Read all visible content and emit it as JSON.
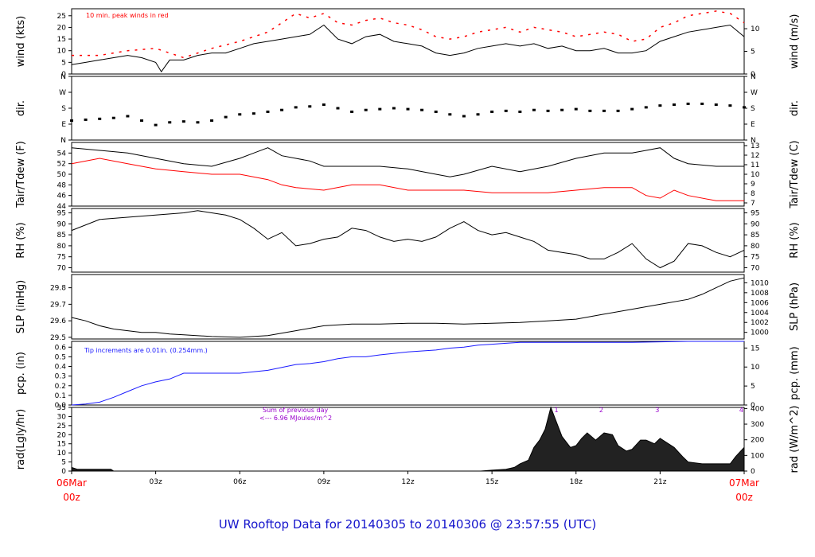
{
  "title": "UW Rooftop Data for 20140305  to  20140306 @ 23:57:55  (UTC)",
  "x_axis": {
    "start_day": "06Mar",
    "start_hour": "00z",
    "end_day": "07Mar",
    "end_hour": "00z",
    "hour_labels": [
      "03z",
      "06z",
      "09z",
      "12z",
      "15z",
      "18z",
      "21z"
    ],
    "hour_values": [
      3,
      6,
      9,
      12,
      15,
      18,
      21
    ],
    "range": [
      0,
      24
    ]
  },
  "colors": {
    "line": "#000000",
    "red": "#ff0000",
    "blue": "#1a1aff",
    "purple": "#9900cc",
    "title": "#1515cc"
  },
  "chart_data": [
    {
      "type": "line",
      "id": "wind",
      "ylabel_left": "wind (kts)",
      "ylabel_right": "wind (m/s)",
      "ylim": [
        0,
        28
      ],
      "left_ticks": [
        "0",
        "5",
        "10",
        "15",
        "20",
        "25"
      ],
      "left_tick_values": [
        0,
        5,
        10,
        15,
        20,
        25
      ],
      "right_ticks": [
        "0",
        "5",
        "10"
      ],
      "right_tick_values": [
        0,
        9.72,
        19.44
      ],
      "annotation": "10 min. peak winds in red",
      "series": [
        {
          "name": "wind speed",
          "color": "#000000",
          "x": [
            0,
            0.5,
            1,
            1.5,
            2,
            2.5,
            3,
            3.2,
            3.5,
            4,
            4.5,
            5,
            5.5,
            6,
            6.5,
            7,
            7.5,
            8,
            8.5,
            9,
            9.5,
            10,
            10.5,
            11,
            11.5,
            12,
            12.5,
            13,
            13.5,
            14,
            14.5,
            15,
            15.5,
            16,
            16.5,
            17,
            17.5,
            18,
            18.5,
            19,
            19.5,
            20,
            20.5,
            21,
            21.5,
            22,
            22.5,
            23,
            23.5,
            24
          ],
          "y": [
            4,
            5,
            6,
            7,
            8,
            7,
            5,
            1,
            6,
            6,
            8,
            9,
            9,
            11,
            13,
            14,
            15,
            16,
            17,
            21,
            15,
            13,
            16,
            17,
            14,
            13,
            12,
            9,
            8,
            9,
            11,
            12,
            13,
            12,
            13,
            11,
            12,
            10,
            10,
            11,
            9,
            9,
            10,
            14,
            16,
            18,
            19,
            20,
            21,
            16
          ]
        },
        {
          "name": "10 min. peak winds",
          "color": "#ff0000",
          "style": "dash",
          "x": [
            0,
            1,
            2,
            3,
            4,
            5,
            6,
            7,
            7.5,
            8,
            8.5,
            9,
            9.5,
            10,
            10.5,
            11,
            11.5,
            12,
            12.5,
            13,
            13.5,
            14,
            14.5,
            15,
            15.5,
            16,
            16.5,
            17,
            17.5,
            18,
            18.5,
            19,
            19.5,
            20,
            20.5,
            21,
            21.5,
            22,
            22.5,
            23,
            23.5,
            24
          ],
          "y": [
            8,
            8,
            10,
            11,
            7,
            11,
            14,
            18,
            22,
            26,
            24,
            26,
            22,
            21,
            23,
            24,
            22,
            21,
            19,
            16,
            15,
            16,
            18,
            19,
            20,
            18,
            20,
            19,
            18,
            16,
            17,
            18,
            17,
            14,
            15,
            20,
            22,
            25,
            26,
            27,
            26,
            22
          ]
        }
      ]
    },
    {
      "type": "scatter",
      "id": "dir",
      "ylabel_left": "dir.",
      "ylabel_right": "dir.",
      "ylim": [
        0,
        360
      ],
      "left_ticks": [
        "N",
        "E",
        "S",
        "W",
        "N"
      ],
      "left_tick_values": [
        0,
        90,
        180,
        270,
        360
      ],
      "right_ticks": [
        "N",
        "E",
        "S",
        "W",
        "N"
      ],
      "right_tick_values": [
        0,
        90,
        180,
        270,
        360
      ],
      "series": [
        {
          "name": "wind direction",
          "color": "#000000",
          "x": [
            0,
            0.5,
            1,
            1.5,
            2,
            2.5,
            3,
            3.5,
            4,
            4.5,
            5,
            5.5,
            6,
            6.5,
            7,
            7.5,
            8,
            8.5,
            9,
            9.5,
            10,
            10.5,
            11,
            11.5,
            12,
            12.5,
            13,
            13.5,
            14,
            14.5,
            15,
            15.5,
            16,
            16.5,
            17,
            17.5,
            18,
            18.5,
            19,
            19.5,
            20,
            20.5,
            21,
            21.5,
            22,
            22.5,
            23,
            23.5,
            24
          ],
          "y": [
            110,
            115,
            120,
            125,
            135,
            110,
            85,
            100,
            105,
            100,
            110,
            130,
            145,
            150,
            160,
            170,
            185,
            190,
            200,
            180,
            160,
            170,
            175,
            180,
            175,
            170,
            160,
            145,
            135,
            145,
            160,
            165,
            160,
            170,
            165,
            170,
            175,
            165,
            165,
            165,
            175,
            185,
            195,
            200,
            205,
            205,
            200,
            195,
            185
          ]
        }
      ]
    },
    {
      "type": "line",
      "id": "temp",
      "ylabel_left": "Tair/Tdew (F)",
      "ylabel_right": "Tair/Tdew (C)",
      "ylim": [
        44,
        56
      ],
      "left_ticks": [
        "44",
        "46",
        "48",
        "50",
        "52",
        "54"
      ],
      "left_tick_values": [
        44,
        46,
        48,
        50,
        52,
        54
      ],
      "right_ticks": [
        "7",
        "8",
        "9",
        "10",
        "11",
        "12",
        "13"
      ],
      "right_tick_values": [
        44.6,
        46.4,
        48.2,
        50.0,
        51.8,
        53.6,
        55.4
      ],
      "series": [
        {
          "name": "Tair",
          "color": "#000000",
          "x": [
            0,
            1,
            2,
            3,
            4,
            5,
            6,
            6.5,
            7,
            7.5,
            8,
            8.5,
            9,
            9.5,
            10,
            11,
            12,
            13,
            13.5,
            14,
            15,
            16,
            17,
            18,
            19,
            20,
            20.5,
            21,
            21.5,
            22,
            23,
            24
          ],
          "y": [
            55,
            54.5,
            54,
            53,
            52,
            51.5,
            53,
            54,
            55,
            53.5,
            53,
            52.5,
            51.5,
            51.5,
            51.5,
            51.5,
            51,
            50,
            49.5,
            50,
            51.5,
            50.5,
            51.5,
            53,
            54,
            54,
            54.5,
            55,
            53,
            52,
            51.5,
            51.5
          ]
        },
        {
          "name": "Tdew",
          "color": "#ff0000",
          "x": [
            0,
            1,
            2,
            3,
            4,
            5,
            6,
            7,
            7.5,
            8,
            9,
            10,
            11,
            12,
            13,
            14,
            15,
            16,
            17,
            18,
            19,
            20,
            20.5,
            21,
            21.5,
            22,
            23,
            24
          ],
          "y": [
            52,
            53,
            52,
            51,
            50.5,
            50,
            50,
            49,
            48,
            47.5,
            47,
            48,
            48,
            47,
            47,
            47,
            46.5,
            46.5,
            46.5,
            47,
            47.5,
            47.5,
            46,
            45.5,
            47,
            46,
            45,
            45
          ]
        }
      ]
    },
    {
      "type": "line",
      "id": "rh",
      "ylabel_left": "RH (%)",
      "ylabel_right": "RH (%)",
      "ylim": [
        68,
        97
      ],
      "left_ticks": [
        "70",
        "75",
        "80",
        "85",
        "90",
        "95"
      ],
      "left_tick_values": [
        70,
        75,
        80,
        85,
        90,
        95
      ],
      "right_ticks": [
        "70",
        "75",
        "80",
        "85",
        "90",
        "95"
      ],
      "right_tick_values": [
        70,
        75,
        80,
        85,
        90,
        95
      ],
      "series": [
        {
          "name": "RH",
          "color": "#000000",
          "x": [
            0,
            1,
            2,
            3,
            4,
            4.5,
            5,
            5.5,
            6,
            6.5,
            7,
            7.5,
            8,
            8.5,
            9,
            9.5,
            10,
            10.5,
            11,
            11.5,
            12,
            12.5,
            13,
            13.5,
            14,
            14.5,
            15,
            15.5,
            16,
            16.5,
            17,
            17.5,
            18,
            18.5,
            19,
            19.5,
            20,
            20.5,
            21,
            21.5,
            22,
            22.5,
            23,
            23.5,
            24
          ],
          "y": [
            87,
            92,
            93,
            94,
            95,
            96,
            95,
            94,
            92,
            88,
            83,
            86,
            80,
            81,
            83,
            84,
            88,
            87,
            84,
            82,
            83,
            82,
            84,
            88,
            91,
            87,
            85,
            86,
            84,
            82,
            78,
            77,
            76,
            74,
            74,
            77,
            81,
            74,
            70,
            73,
            81,
            80,
            77,
            75,
            78
          ]
        }
      ]
    },
    {
      "type": "line",
      "id": "slp",
      "ylabel_left": "SLP (inHg)",
      "ylabel_right": "SLP (hPa)",
      "ylim": [
        29.49,
        29.88
      ],
      "left_ticks": [
        "29.5",
        "29.6",
        "29.7",
        "29.8"
      ],
      "left_tick_values": [
        29.5,
        29.6,
        29.7,
        29.8
      ],
      "right_ticks": [
        "1000",
        "1002",
        "1004",
        "1006",
        "1008",
        "1010"
      ],
      "right_tick_values": [
        29.53,
        29.59,
        29.65,
        29.71,
        29.77,
        29.83
      ],
      "series": [
        {
          "name": "SLP",
          "color": "#000000",
          "x": [
            0,
            0.5,
            1,
            1.5,
            2,
            2.5,
            3,
            3.5,
            4,
            5,
            6,
            7,
            8,
            9,
            10,
            11,
            12,
            13,
            14,
            15,
            16,
            17,
            18,
            19,
            20,
            21,
            22,
            22.5,
            23,
            23.5,
            24
          ],
          "y": [
            29.62,
            29.6,
            29.57,
            29.55,
            29.54,
            29.53,
            29.53,
            29.52,
            29.515,
            29.505,
            29.5,
            29.51,
            29.54,
            29.57,
            29.58,
            29.58,
            29.585,
            29.585,
            29.58,
            29.585,
            29.59,
            29.6,
            29.61,
            29.64,
            29.67,
            29.7,
            29.73,
            29.76,
            29.8,
            29.84,
            29.86
          ]
        }
      ]
    },
    {
      "type": "area",
      "id": "pcp",
      "ylabel_left": "pcp. (in)",
      "ylabel_right": "pcp. (mm)",
      "ylim": [
        0,
        0.66
      ],
      "left_ticks": [
        "0.0",
        "0.1",
        "0.2",
        "0.3",
        "0.4",
        "0.5",
        "0.6"
      ],
      "left_tick_values": [
        0,
        0.1,
        0.2,
        0.3,
        0.4,
        0.5,
        0.6
      ],
      "right_ticks": [
        "0",
        "5",
        "10",
        "15"
      ],
      "right_tick_values": [
        0,
        0.197,
        0.394,
        0.591
      ],
      "annotation": "Tip increments are 0.01in. (0.254mm.)",
      "series": [
        {
          "name": "cumulative precipitation",
          "color": "#1a1aff",
          "x": [
            0,
            0.5,
            1,
            1.5,
            2,
            2.5,
            3,
            3.5,
            4,
            5,
            6,
            7,
            7.5,
            8,
            8.5,
            9,
            9.5,
            10,
            10.5,
            11,
            12,
            13,
            13.5,
            14,
            14.5,
            15,
            15.5,
            16,
            18,
            20,
            22,
            24
          ],
          "y": [
            0,
            0.01,
            0.03,
            0.08,
            0.14,
            0.2,
            0.24,
            0.27,
            0.33,
            0.33,
            0.33,
            0.36,
            0.39,
            0.42,
            0.43,
            0.45,
            0.48,
            0.5,
            0.5,
            0.52,
            0.55,
            0.57,
            0.59,
            0.6,
            0.62,
            0.63,
            0.64,
            0.65,
            0.65,
            0.65,
            0.66,
            0.66
          ]
        }
      ]
    },
    {
      "type": "area",
      "id": "rad",
      "ylabel_left": "rad(Lgly/hr)",
      "ylabel_right": "rad (W/m^2)",
      "ylim": [
        0,
        35
      ],
      "left_ticks": [
        "0",
        "5",
        "10",
        "15",
        "20",
        "25",
        "30",
        "35"
      ],
      "left_tick_values": [
        0,
        5,
        10,
        15,
        20,
        25,
        30,
        35
      ],
      "right_ticks": [
        "0",
        "100",
        "200",
        "300",
        "400"
      ],
      "right_tick_values": [
        0,
        8.6,
        17.2,
        25.8,
        34.4
      ],
      "annotation_line1": "Sum of previous day",
      "annotation_line2": "<--- 6.96 MJoules/m^2",
      "peak_labels": [
        "1",
        "2",
        "3",
        "4"
      ],
      "peak_label_times": [
        17.3,
        18.9,
        20.9,
        23.9
      ],
      "series": [
        {
          "name": "solar radiation",
          "color": "#000000",
          "x": [
            0,
            0.2,
            0.5,
            1,
            1.4,
            1.5,
            2,
            14.6,
            15,
            15.5,
            15.8,
            16,
            16.3,
            16.5,
            16.7,
            16.9,
            17.1,
            17.3,
            17.5,
            17.8,
            18,
            18.2,
            18.4,
            18.7,
            19,
            19.3,
            19.5,
            19.8,
            20,
            20.3,
            20.5,
            20.8,
            21,
            21.2,
            21.5,
            21.8,
            22,
            22.5,
            23,
            23.5,
            23.7,
            24
          ],
          "y": [
            2,
            1,
            1,
            1,
            1,
            0,
            0,
            0,
            0.5,
            1,
            2,
            4,
            6,
            13,
            17,
            23,
            35,
            27,
            19,
            13,
            14,
            18,
            21,
            17,
            21,
            20,
            14,
            11,
            12,
            17,
            17,
            15,
            18,
            16,
            13,
            8,
            5,
            4,
            4,
            4,
            8,
            13
          ]
        }
      ]
    }
  ]
}
